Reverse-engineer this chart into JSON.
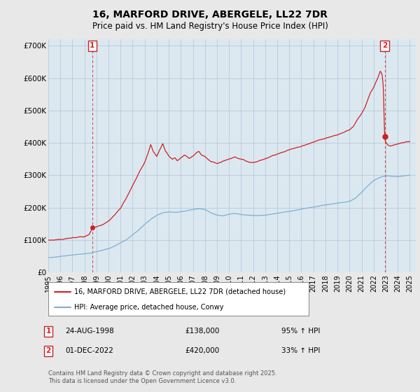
{
  "title": "16, MARFORD DRIVE, ABERGELE, LL22 7DR",
  "subtitle": "Price paid vs. HM Land Registry's House Price Index (HPI)",
  "ylim": [
    0,
    720000
  ],
  "yticks": [
    0,
    100000,
    200000,
    300000,
    400000,
    500000,
    600000,
    700000
  ],
  "ytick_labels": [
    "£0",
    "£100K",
    "£200K",
    "£300K",
    "£400K",
    "£500K",
    "£600K",
    "£700K"
  ],
  "xlim_start": 1995.0,
  "xlim_end": 2025.5,
  "hpi_color": "#7bafd4",
  "price_color": "#cc2222",
  "marker1_date": 1998.648,
  "marker1_price": 138000,
  "marker1_date_str": "24-AUG-1998",
  "marker1_price_str": "£138,000",
  "marker1_pct_str": "95% ↑ HPI",
  "marker2_date": 2022.917,
  "marker2_price": 420000,
  "marker2_date_str": "01-DEC-2022",
  "marker2_price_str": "£420,000",
  "marker2_pct_str": "33% ↑ HPI",
  "legend_line1": "16, MARFORD DRIVE, ABERGELE, LL22 7DR (detached house)",
  "legend_line2": "HPI: Average price, detached house, Conwy",
  "footnote": "Contains HM Land Registry data © Crown copyright and database right 2025.\nThis data is licensed under the Open Government Licence v3.0.",
  "background_color": "#e8e8e8",
  "plot_bg_color": "#dce8f0",
  "grid_color": "#b0c4d8",
  "title_fontsize": 10,
  "subtitle_fontsize": 8.5,
  "tick_fontsize": 7.5
}
